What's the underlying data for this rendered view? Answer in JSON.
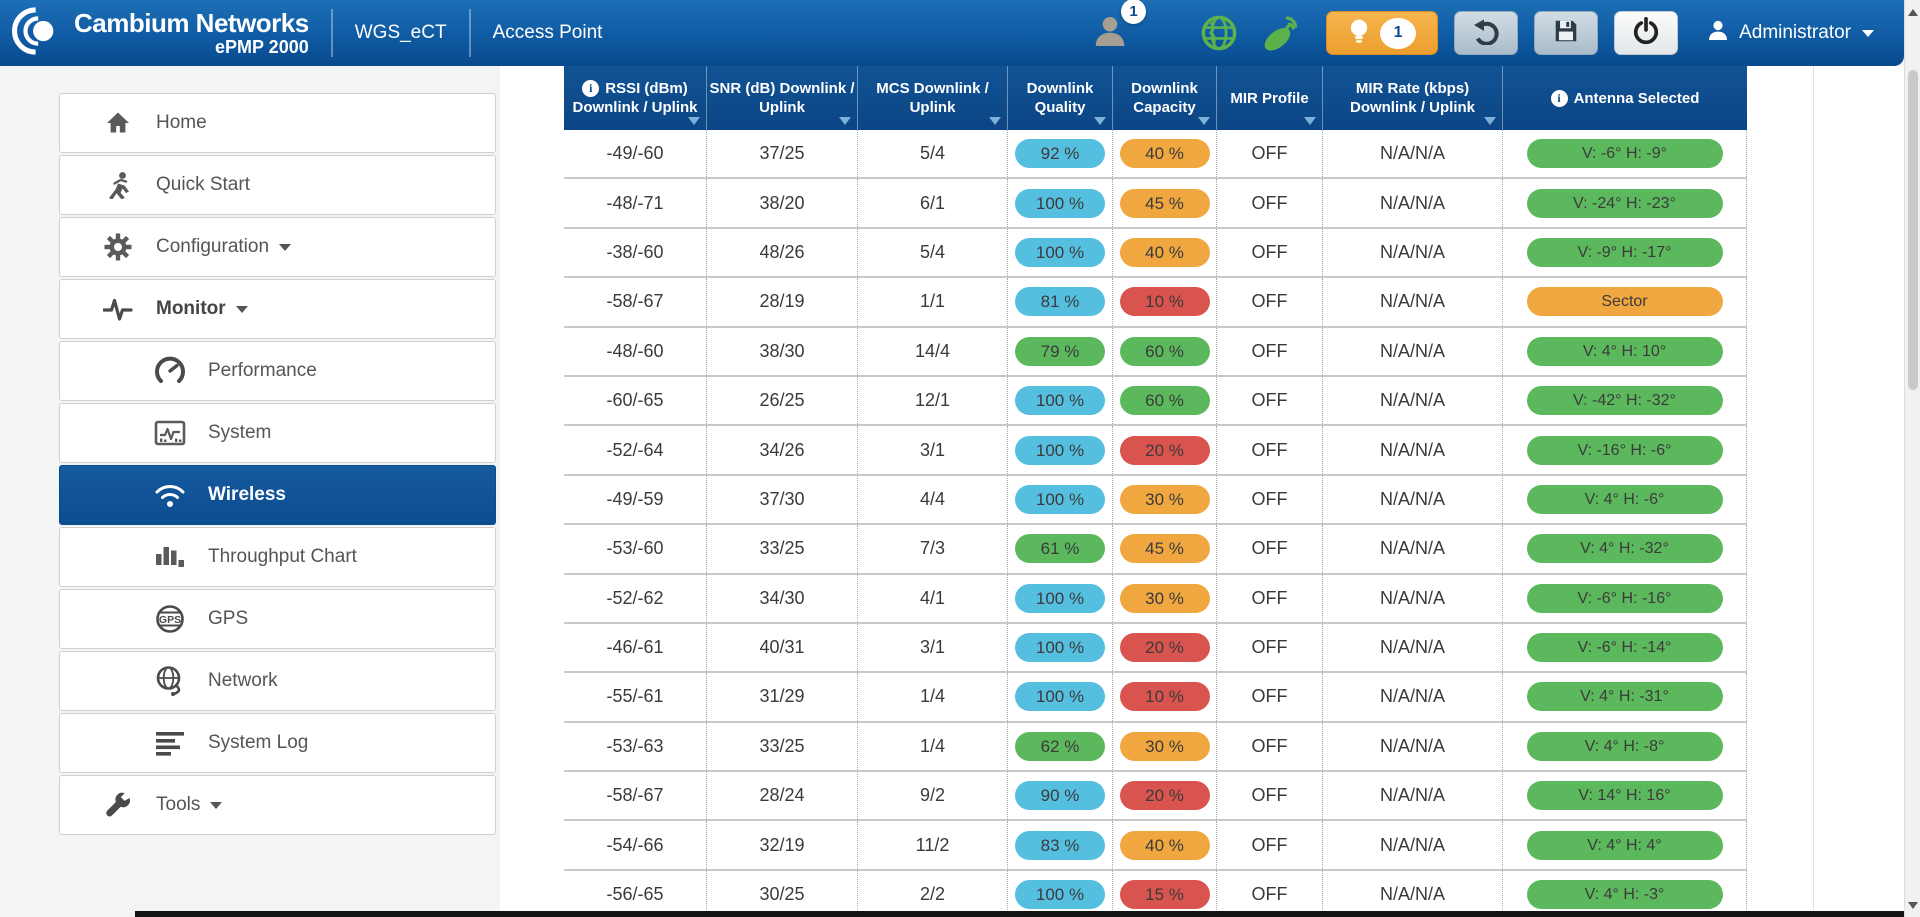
{
  "topnav": {
    "brand_name": "Cambium Networks",
    "brand_model": "ePMP 2000",
    "device_name": "WGS_eCT",
    "device_mode": "Access Point",
    "account_badge": "1",
    "notification_badge": "1",
    "user_name": "Administrator"
  },
  "sidebar": {
    "items": [
      {
        "label": "Home"
      },
      {
        "label": "Quick Start"
      },
      {
        "label": "Configuration",
        "caret": true
      },
      {
        "label": "Monitor",
        "caret": true
      },
      {
        "label": "Performance",
        "indent": true
      },
      {
        "label": "System",
        "indent": true
      },
      {
        "label": "Wireless",
        "indent": true,
        "selected": true
      },
      {
        "label": "Throughput Chart",
        "indent": true
      },
      {
        "label": "GPS",
        "indent": true
      },
      {
        "label": "Network",
        "indent": true
      },
      {
        "label": "System Log",
        "indent": true
      },
      {
        "label": "Tools",
        "caret": true
      }
    ]
  },
  "table": {
    "info_glyph": "i",
    "columns": [
      {
        "line1": "RSSI (dBm)",
        "line2": "Downlink / Uplink",
        "info": true,
        "sortable": true
      },
      {
        "line1": "SNR (dB) Downlink /",
        "line2": "Uplink",
        "sortable": true
      },
      {
        "line1": "MCS Downlink /",
        "line2": "Uplink",
        "sortable": true
      },
      {
        "line1": "Downlink",
        "line2": "Quality",
        "sortable": true
      },
      {
        "line1": "Downlink",
        "line2": "Capacity",
        "sortable": true
      },
      {
        "line1": "MIR Profile",
        "line2": "",
        "sortable": true
      },
      {
        "line1": "MIR Rate (kbps)",
        "line2": "Downlink / Uplink",
        "sortable": true
      },
      {
        "line1": "Antenna Selected",
        "line2": "",
        "info": true,
        "sortable": false
      }
    ],
    "badge_colors": {
      "blue": "#55bfe0",
      "green": "#5cb85c",
      "orange": "#f0a73f",
      "red": "#d9534f"
    },
    "rows": [
      {
        "rssi": "-49/-60",
        "snr": "37/25",
        "mcs": "5/4",
        "downlink_quality": {
          "text": "92 %",
          "color": "blue"
        },
        "downlink_capacity": {
          "text": "40 %",
          "color": "orange"
        },
        "mir_profile": "OFF",
        "mir_rate": "N/A/N/A",
        "antenna": {
          "text": "V: -6° H: -9°",
          "color": "green"
        }
      },
      {
        "rssi": "-48/-71",
        "snr": "38/20",
        "mcs": "6/1",
        "downlink_quality": {
          "text": "100 %",
          "color": "blue"
        },
        "downlink_capacity": {
          "text": "45 %",
          "color": "orange"
        },
        "mir_profile": "OFF",
        "mir_rate": "N/A/N/A",
        "antenna": {
          "text": "V: -24° H: -23°",
          "color": "green"
        }
      },
      {
        "rssi": "-38/-60",
        "snr": "48/26",
        "mcs": "5/4",
        "downlink_quality": {
          "text": "100 %",
          "color": "blue"
        },
        "downlink_capacity": {
          "text": "40 %",
          "color": "orange"
        },
        "mir_profile": "OFF",
        "mir_rate": "N/A/N/A",
        "antenna": {
          "text": "V: -9° H: -17°",
          "color": "green"
        }
      },
      {
        "rssi": "-58/-67",
        "snr": "28/19",
        "mcs": "1/1",
        "downlink_quality": {
          "text": "81 %",
          "color": "blue"
        },
        "downlink_capacity": {
          "text": "10 %",
          "color": "red"
        },
        "mir_profile": "OFF",
        "mir_rate": "N/A/N/A",
        "antenna": {
          "text": "Sector",
          "color": "orange"
        }
      },
      {
        "rssi": "-48/-60",
        "snr": "38/30",
        "mcs": "14/4",
        "downlink_quality": {
          "text": "79 %",
          "color": "green"
        },
        "downlink_capacity": {
          "text": "60 %",
          "color": "green"
        },
        "mir_profile": "OFF",
        "mir_rate": "N/A/N/A",
        "antenna": {
          "text": "V: 4° H: 10°",
          "color": "green"
        }
      },
      {
        "rssi": "-60/-65",
        "snr": "26/25",
        "mcs": "12/1",
        "downlink_quality": {
          "text": "100 %",
          "color": "blue"
        },
        "downlink_capacity": {
          "text": "60 %",
          "color": "green"
        },
        "mir_profile": "OFF",
        "mir_rate": "N/A/N/A",
        "antenna": {
          "text": "V: -42° H: -32°",
          "color": "green"
        }
      },
      {
        "rssi": "-52/-64",
        "snr": "34/26",
        "mcs": "3/1",
        "downlink_quality": {
          "text": "100 %",
          "color": "blue"
        },
        "downlink_capacity": {
          "text": "20 %",
          "color": "red"
        },
        "mir_profile": "OFF",
        "mir_rate": "N/A/N/A",
        "antenna": {
          "text": "V: -16° H: -6°",
          "color": "green"
        }
      },
      {
        "rssi": "-49/-59",
        "snr": "37/30",
        "mcs": "4/4",
        "downlink_quality": {
          "text": "100 %",
          "color": "blue"
        },
        "downlink_capacity": {
          "text": "30 %",
          "color": "orange"
        },
        "mir_profile": "OFF",
        "mir_rate": "N/A/N/A",
        "antenna": {
          "text": "V: 4° H: -6°",
          "color": "green"
        }
      },
      {
        "rssi": "-53/-60",
        "snr": "33/25",
        "mcs": "7/3",
        "downlink_quality": {
          "text": "61 %",
          "color": "green"
        },
        "downlink_capacity": {
          "text": "45 %",
          "color": "orange"
        },
        "mir_profile": "OFF",
        "mir_rate": "N/A/N/A",
        "antenna": {
          "text": "V: 4° H: -32°",
          "color": "green"
        }
      },
      {
        "rssi": "-52/-62",
        "snr": "34/30",
        "mcs": "4/1",
        "downlink_quality": {
          "text": "100 %",
          "color": "blue"
        },
        "downlink_capacity": {
          "text": "30 %",
          "color": "orange"
        },
        "mir_profile": "OFF",
        "mir_rate": "N/A/N/A",
        "antenna": {
          "text": "V: -6° H: -16°",
          "color": "green"
        }
      },
      {
        "rssi": "-46/-61",
        "snr": "40/31",
        "mcs": "3/1",
        "downlink_quality": {
          "text": "100 %",
          "color": "blue"
        },
        "downlink_capacity": {
          "text": "20 %",
          "color": "red"
        },
        "mir_profile": "OFF",
        "mir_rate": "N/A/N/A",
        "antenna": {
          "text": "V: -6° H: -14°",
          "color": "green"
        }
      },
      {
        "rssi": "-55/-61",
        "snr": "31/29",
        "mcs": "1/4",
        "downlink_quality": {
          "text": "100 %",
          "color": "blue"
        },
        "downlink_capacity": {
          "text": "10 %",
          "color": "red"
        },
        "mir_profile": "OFF",
        "mir_rate": "N/A/N/A",
        "antenna": {
          "text": "V: 4° H: -31°",
          "color": "green"
        }
      },
      {
        "rssi": "-53/-63",
        "snr": "33/25",
        "mcs": "1/4",
        "downlink_quality": {
          "text": "62 %",
          "color": "green"
        },
        "downlink_capacity": {
          "text": "30 %",
          "color": "orange"
        },
        "mir_profile": "OFF",
        "mir_rate": "N/A/N/A",
        "antenna": {
          "text": "V: 4° H: -8°",
          "color": "green"
        }
      },
      {
        "rssi": "-58/-67",
        "snr": "28/24",
        "mcs": "9/2",
        "downlink_quality": {
          "text": "90 %",
          "color": "blue"
        },
        "downlink_capacity": {
          "text": "20 %",
          "color": "red"
        },
        "mir_profile": "OFF",
        "mir_rate": "N/A/N/A",
        "antenna": {
          "text": "V: 14° H: 16°",
          "color": "green"
        }
      },
      {
        "rssi": "-54/-66",
        "snr": "32/19",
        "mcs": "11/2",
        "downlink_quality": {
          "text": "83 %",
          "color": "blue"
        },
        "downlink_capacity": {
          "text": "40 %",
          "color": "orange"
        },
        "mir_profile": "OFF",
        "mir_rate": "N/A/N/A",
        "antenna": {
          "text": "V: 4° H: 4°",
          "color": "green"
        }
      },
      {
        "rssi": "-56/-65",
        "snr": "30/25",
        "mcs": "2/2",
        "downlink_quality": {
          "text": "100 %",
          "color": "blue"
        },
        "downlink_capacity": {
          "text": "15 %",
          "color": "red"
        },
        "mir_profile": "OFF",
        "mir_rate": "N/A/N/A",
        "antenna": {
          "text": "V: 4° H: -3°",
          "color": "green"
        }
      }
    ]
  }
}
